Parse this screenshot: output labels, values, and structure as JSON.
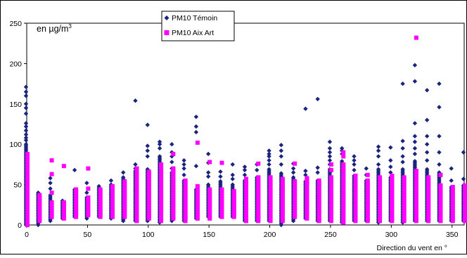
{
  "chart_data": {
    "type": "scatter",
    "title": "",
    "unit_label_prefix": "en µg/m",
    "unit_label_sup": "3",
    "xlabel": "Direction du vent en °",
    "ylabel": "",
    "xlim": [
      0,
      360
    ],
    "ylim": [
      0,
      250
    ],
    "x_ticks": [
      0,
      50,
      100,
      150,
      200,
      250,
      300,
      350
    ],
    "y_ticks": [
      0,
      50,
      100,
      150,
      200,
      250
    ],
    "grid": false,
    "legend_position": "top-center",
    "series": [
      {
        "name": "PM10 Témoin",
        "color": "#1a237e",
        "marker": "diamond",
        "columns": [
          {
            "x": 0,
            "min": 0,
            "max": 100,
            "extra": [
              105,
              108,
              112,
              117,
              122,
              126,
              138,
              145,
              150,
              160,
              165,
              171
            ]
          },
          {
            "x": 10,
            "min": 0,
            "max": 40,
            "extra": []
          },
          {
            "x": 20,
            "min": 5,
            "max": 38,
            "extra": [
              45,
              52,
              58
            ]
          },
          {
            "x": 30,
            "min": 8,
            "max": 30,
            "extra": []
          },
          {
            "x": 40,
            "min": 10,
            "max": 45,
            "extra": [
              68
            ]
          },
          {
            "x": 50,
            "min": 8,
            "max": 35,
            "extra": [
              40,
              52
            ]
          },
          {
            "x": 60,
            "min": 10,
            "max": 48,
            "extra": []
          },
          {
            "x": 70,
            "min": 8,
            "max": 50,
            "extra": [
              55
            ]
          },
          {
            "x": 80,
            "min": 5,
            "max": 60,
            "extra": [
              65
            ]
          },
          {
            "x": 90,
            "min": 5,
            "max": 68,
            "extra": [
              70,
              75,
              154
            ]
          },
          {
            "x": 100,
            "min": 5,
            "max": 70,
            "extra": [
              85,
              92,
              98,
              124
            ]
          },
          {
            "x": 110,
            "min": 3,
            "max": 85,
            "extra": [
              95,
              100,
              103
            ]
          },
          {
            "x": 120,
            "min": 5,
            "max": 65,
            "extra": [
              70,
              78,
              85,
              90,
              100
            ]
          },
          {
            "x": 130,
            "min": 5,
            "max": 55,
            "extra": [
              62,
              70,
              75,
              80
            ]
          },
          {
            "x": 140,
            "min": 8,
            "max": 45,
            "extra": [
              73,
              115,
              122,
              134
            ]
          },
          {
            "x": 150,
            "min": 10,
            "max": 50,
            "extra": [
              60,
              65,
              77,
              88
            ]
          },
          {
            "x": 160,
            "min": 10,
            "max": 55,
            "extra": [
              60,
              66
            ]
          },
          {
            "x": 170,
            "min": 10,
            "max": 50,
            "extra": [
              57,
              62,
              75
            ]
          },
          {
            "x": 180,
            "min": 5,
            "max": 55,
            "extra": [
              62,
              68,
              72
            ]
          },
          {
            "x": 190,
            "min": 5,
            "max": 60,
            "extra": [
              68,
              75
            ]
          },
          {
            "x": 200,
            "min": 5,
            "max": 70,
            "extra": [
              75,
              80,
              85,
              88,
              92
            ]
          },
          {
            "x": 210,
            "min": 0,
            "max": 65,
            "extra": [
              75,
              85,
              92,
              99
            ]
          },
          {
            "x": 220,
            "min": 5,
            "max": 60,
            "extra": [
              65,
              70,
              76
            ]
          },
          {
            "x": 230,
            "min": 8,
            "max": 55,
            "extra": [
              62,
              67,
              144
            ]
          },
          {
            "x": 240,
            "min": 5,
            "max": 55,
            "extra": [
              65,
              71,
              156
            ]
          },
          {
            "x": 250,
            "min": 5,
            "max": 70,
            "extra": [
              75,
              80,
              85,
              90,
              95,
              103
            ]
          },
          {
            "x": 260,
            "min": 3,
            "max": 80,
            "extra": [
              88,
              92,
              95
            ]
          },
          {
            "x": 270,
            "min": 5,
            "max": 62,
            "extra": [
              68,
              75,
              80,
              85
            ]
          },
          {
            "x": 280,
            "min": 5,
            "max": 55,
            "extra": [
              62,
              70
            ]
          },
          {
            "x": 290,
            "min": 3,
            "max": 70,
            "extra": [
              75,
              85,
              92,
              97
            ]
          },
          {
            "x": 300,
            "min": 5,
            "max": 60,
            "extra": [
              65,
              72,
              80,
              96
            ]
          },
          {
            "x": 310,
            "min": 3,
            "max": 70,
            "extra": [
              78,
              85,
              95,
              104,
              175
            ]
          },
          {
            "x": 320,
            "min": 5,
            "max": 80,
            "extra": [
              88,
              95,
              103,
              110,
              126,
              178,
              198
            ]
          },
          {
            "x": 330,
            "min": 5,
            "max": 70,
            "extra": [
              80,
              90,
              100,
              110,
              130,
              167
            ]
          },
          {
            "x": 340,
            "min": 5,
            "max": 65,
            "extra": [
              75,
              90,
              110,
              146,
              175
            ]
          },
          {
            "x": 350,
            "min": 5,
            "max": 48,
            "extra": [
              55,
              70
            ]
          },
          {
            "x": 360,
            "min": 5,
            "max": 50,
            "extra": [
              57,
              90
            ]
          }
        ]
      },
      {
        "name": "PM10 Aix Art",
        "color": "#ff00ff",
        "marker": "square",
        "columns": [
          {
            "x": 0,
            "min": 0,
            "max": 88,
            "extra": []
          },
          {
            "x": 10,
            "min": 5,
            "max": 38,
            "extra": []
          },
          {
            "x": 20,
            "min": 10,
            "max": 28,
            "extra": [
              40,
              63,
              80
            ]
          },
          {
            "x": 30,
            "min": 10,
            "max": 28,
            "extra": [
              8,
              73
            ]
          },
          {
            "x": 40,
            "min": 10,
            "max": 45,
            "extra": []
          },
          {
            "x": 50,
            "min": 12,
            "max": 35,
            "extra": [
              45,
              70
            ]
          },
          {
            "x": 60,
            "min": 10,
            "max": 45,
            "extra": []
          },
          {
            "x": 70,
            "min": 10,
            "max": 48,
            "extra": []
          },
          {
            "x": 80,
            "min": 10,
            "max": 55,
            "extra": []
          },
          {
            "x": 90,
            "min": 5,
            "max": 65,
            "extra": [
              70
            ]
          },
          {
            "x": 100,
            "min": 8,
            "max": 66,
            "extra": []
          },
          {
            "x": 110,
            "min": 5,
            "max": 75,
            "extra": []
          },
          {
            "x": 120,
            "min": 8,
            "max": 70,
            "extra": [
              88
            ]
          },
          {
            "x": 130,
            "min": 5,
            "max": 55,
            "extra": []
          },
          {
            "x": 140,
            "min": 8,
            "max": 48,
            "extra": [
              102
            ]
          },
          {
            "x": 150,
            "min": 8,
            "max": 45,
            "extra": [
              78
            ]
          },
          {
            "x": 160,
            "min": 10,
            "max": 45,
            "extra": [
              77
            ]
          },
          {
            "x": 170,
            "min": 10,
            "max": 42,
            "extra": []
          },
          {
            "x": 180,
            "min": 5,
            "max": 58,
            "extra": []
          },
          {
            "x": 190,
            "min": 5,
            "max": 60,
            "extra": [
              76
            ]
          },
          {
            "x": 200,
            "min": 5,
            "max": 60,
            "extra": []
          },
          {
            "x": 210,
            "min": 5,
            "max": 58,
            "extra": []
          },
          {
            "x": 220,
            "min": 10,
            "max": 55,
            "extra": [
              76
            ]
          },
          {
            "x": 230,
            "min": 8,
            "max": 58,
            "extra": []
          },
          {
            "x": 240,
            "min": 5,
            "max": 55,
            "extra": []
          },
          {
            "x": 250,
            "min": 5,
            "max": 60,
            "extra": [
              68,
              75
            ]
          },
          {
            "x": 260,
            "min": 3,
            "max": 75,
            "extra": [
              85,
              90
            ]
          },
          {
            "x": 270,
            "min": 5,
            "max": 62,
            "extra": []
          },
          {
            "x": 280,
            "min": 5,
            "max": 55,
            "extra": [
              62
            ]
          },
          {
            "x": 290,
            "min": 5,
            "max": 60,
            "extra": []
          },
          {
            "x": 300,
            "min": 5,
            "max": 62,
            "extra": []
          },
          {
            "x": 310,
            "min": 5,
            "max": 60,
            "extra": []
          },
          {
            "x": 320,
            "min": 5,
            "max": 68,
            "extra": [
              232
            ]
          },
          {
            "x": 330,
            "min": 5,
            "max": 60,
            "extra": []
          },
          {
            "x": 340,
            "min": 5,
            "max": 50,
            "extra": [
              62
            ]
          },
          {
            "x": 350,
            "min": 5,
            "max": 48,
            "extra": []
          },
          {
            "x": 360,
            "min": 5,
            "max": 50,
            "extra": [
              20
            ]
          }
        ]
      }
    ]
  }
}
